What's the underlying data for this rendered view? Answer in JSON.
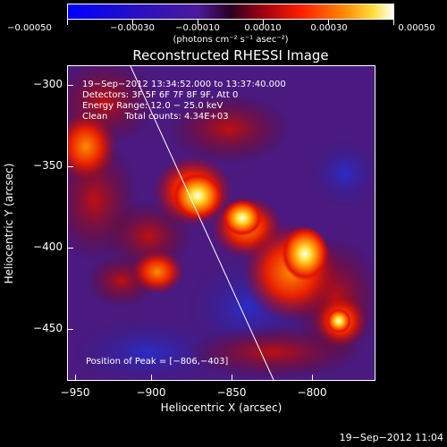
{
  "colorbar": {
    "tick_labels": [
      "−0.00050",
      "−0.00030",
      "−0.00010",
      "0.00010",
      "0.00030",
      "0.00050"
    ],
    "range": [
      -0.0005,
      0.0005
    ],
    "units": "(photons cm⁻² s⁻¹ asec⁻²)"
  },
  "title": "Reconstructed RHESSI Image",
  "info": {
    "time_range": "19−Sep−2012 13:34:52.000 to 13:37:40.000",
    "detectors": "Detectors: 3F 5F 6F 7F 8F 9F, Att 0",
    "energy": "Energy Range: 12.0 − 25.0 keV",
    "algorithm": "Clean      Total counts: 4.34E+03"
  },
  "peak_text": "Position of Peak = [−806,−403]",
  "axes": {
    "xlabel": "Heliocentric X (arcsec)",
    "ylabel": "Heliocentric Y (arcsec)",
    "x_ticks": [
      "−950",
      "−900",
      "−850",
      "−800"
    ],
    "y_ticks": [
      "−300",
      "−350",
      "−400",
      "−450"
    ],
    "xlim": [
      -955,
      -765
    ],
    "ylim": [
      -482,
      -288
    ]
  },
  "timestamp": "19−Sep−2012 11:04",
  "colors": {
    "background": "#000000",
    "frame": "#ffffff"
  }
}
